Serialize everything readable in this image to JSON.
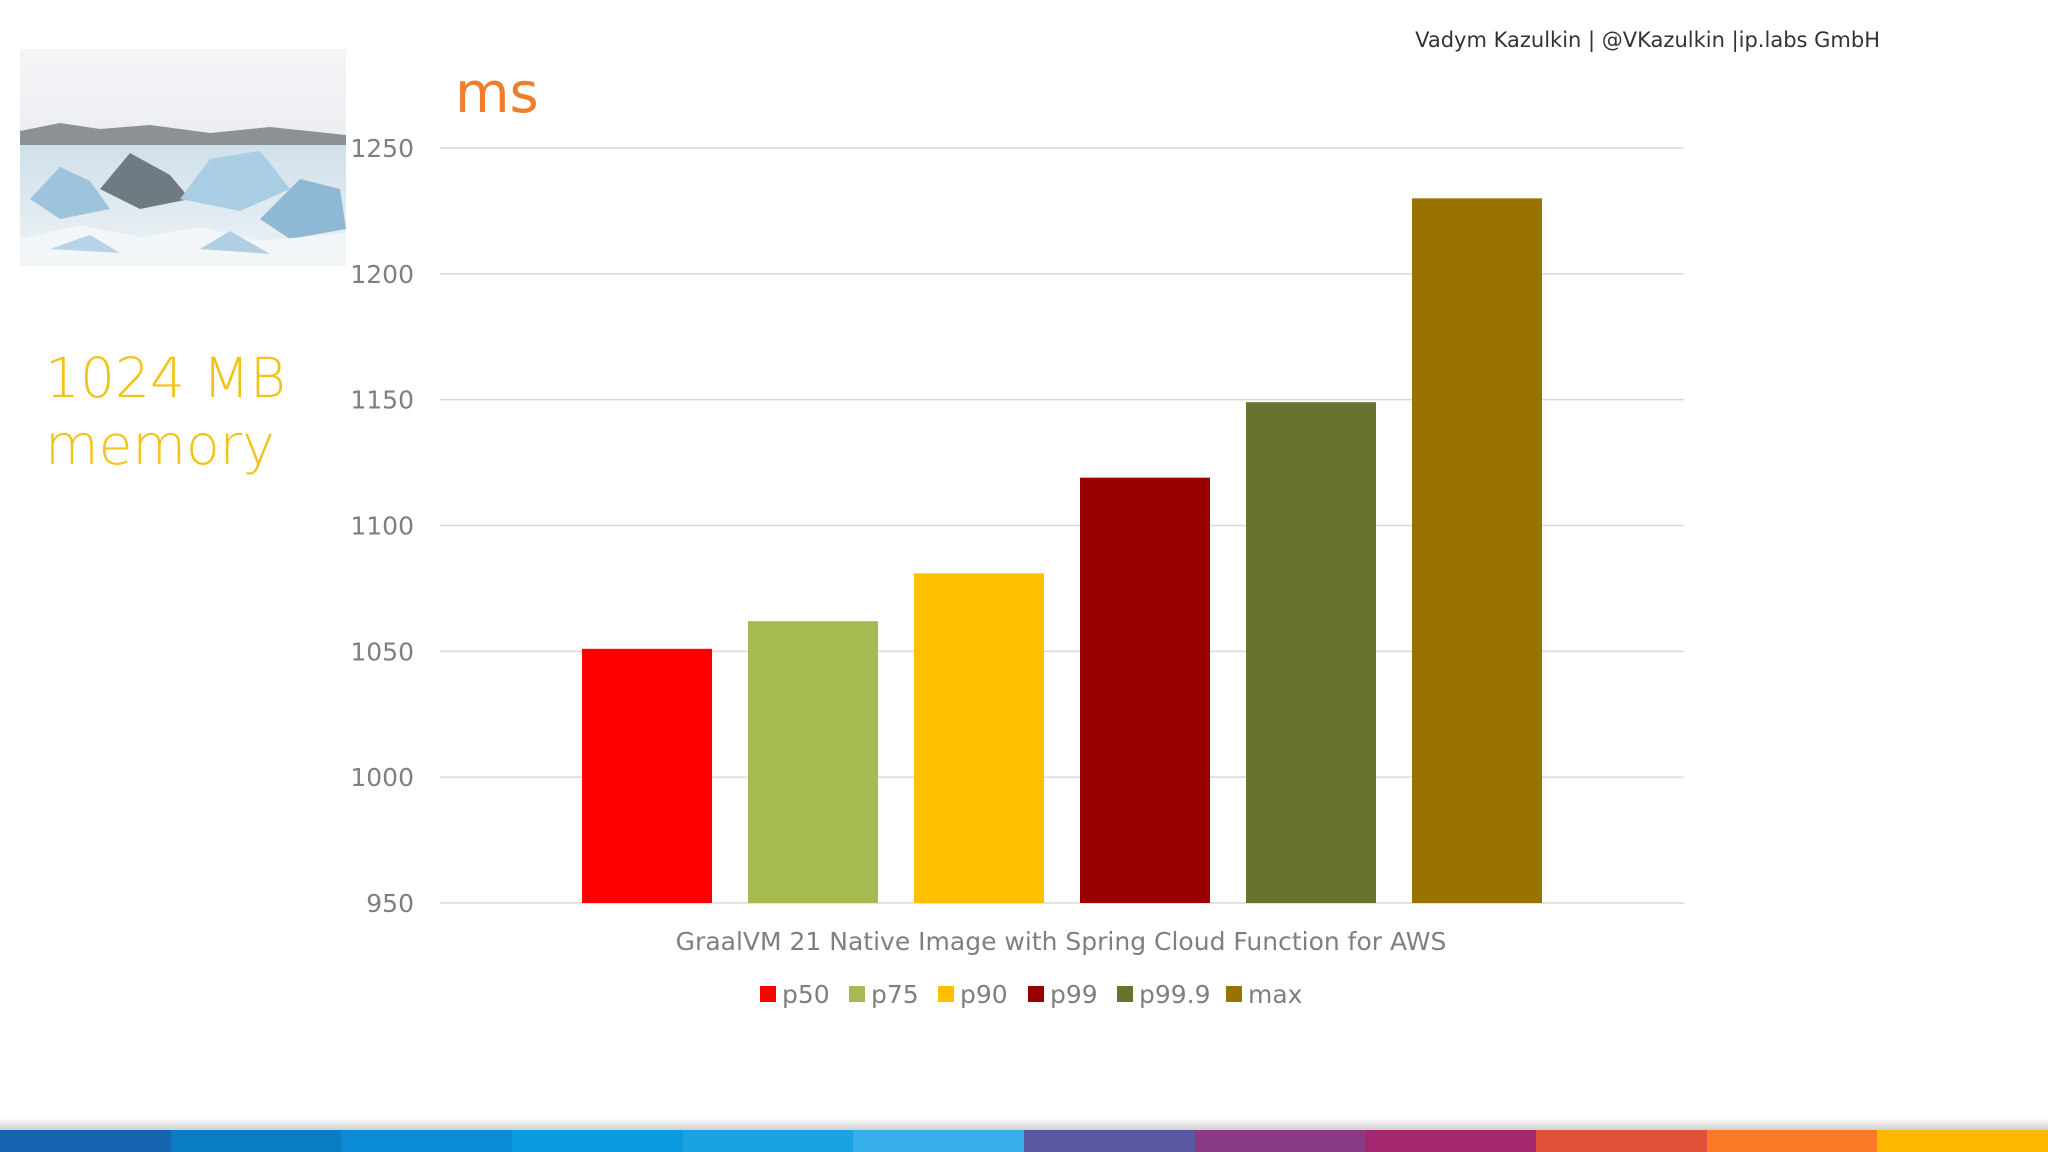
{
  "header": {
    "author": "Vadym Kazulkin | @VKazulkin |ip.labs GmbH"
  },
  "side": {
    "memory_line1": "1024 MB",
    "memory_line2": "memory",
    "memory_color": "#f2c31b"
  },
  "chart_data": {
    "type": "bar",
    "title": "ms",
    "title_color": "#f07d2a",
    "xlabel": "GraalVM 21 Native Image with Spring Cloud Function for AWS",
    "ylabel": "ms",
    "ylim": [
      950,
      1250
    ],
    "yticks": [
      950,
      1000,
      1050,
      1100,
      1150,
      1200,
      1250
    ],
    "grid": true,
    "legend_position": "bottom",
    "series": [
      {
        "name": "p50",
        "value": 1051,
        "color": "#ff0000"
      },
      {
        "name": "p75",
        "value": 1062,
        "color": "#a5bb52"
      },
      {
        "name": "p90",
        "value": 1081,
        "color": "#ffc000"
      },
      {
        "name": "p99",
        "value": 1119,
        "color": "#990000"
      },
      {
        "name": "p99.9",
        "value": 1149,
        "color": "#667430"
      },
      {
        "name": "max",
        "value": 1230,
        "color": "#997300"
      }
    ]
  },
  "footer_colors": [
    "#1565b0",
    "#0a7cc4",
    "#0b8bd6",
    "#0a9be0",
    "#1aa3e3",
    "#37afe8",
    "#5a59a0",
    "#8a3a84",
    "#a3286f",
    "#e2523a",
    "#fb7a28",
    "#ffb800"
  ]
}
